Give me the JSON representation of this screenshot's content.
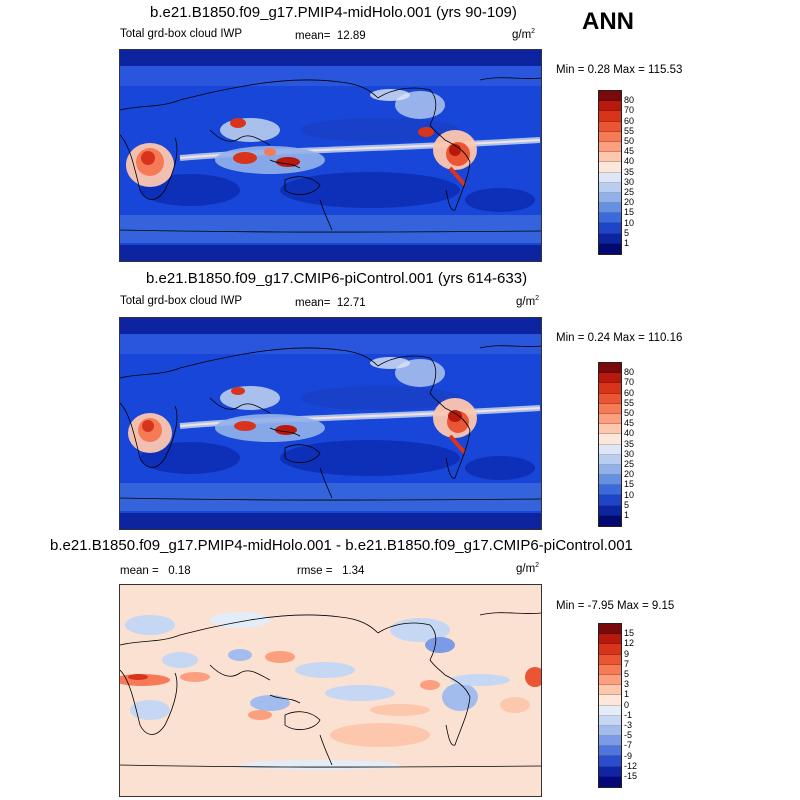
{
  "season": "ANN",
  "panels": [
    {
      "title": "b.e21.B1850.f09_g17.PMIP4-midHolo.001 (yrs 90-109)",
      "variable": "Total grd-box cloud IWP",
      "mean_label": "mean=",
      "mean_value": "12.89",
      "unit": "g/m",
      "unit_exp": "2",
      "minmax": "Min =  0.28 Max = 115.53",
      "colorbar": {
        "labels": [
          "80",
          "70",
          "60",
          "55",
          "50",
          "45",
          "40",
          "35",
          "30",
          "25",
          "20",
          "15",
          "10",
          "5",
          "1"
        ],
        "colors": [
          "#7a0a0a",
          "#b8190e",
          "#d8341c",
          "#ea5634",
          "#f57a55",
          "#fb9f7e",
          "#fdc7ae",
          "#fde6da",
          "#dde7f7",
          "#b9cdf0",
          "#92b1ea",
          "#6690e2",
          "#3c6adc",
          "#1e45c8",
          "#0d24a0",
          "#020a72"
        ]
      }
    },
    {
      "title": "b.e21.B1850.f09_g17.CMIP6-piControl.001 (yrs 614-633)",
      "variable": "Total grd-box cloud IWP",
      "mean_label": "mean=",
      "mean_value": "12.71",
      "unit": "g/m",
      "unit_exp": "2",
      "minmax": "Min =  0.24 Max = 110.16",
      "colorbar": {
        "labels": [
          "80",
          "70",
          "60",
          "55",
          "50",
          "45",
          "40",
          "35",
          "30",
          "25",
          "20",
          "15",
          "10",
          "5",
          "1"
        ],
        "colors": [
          "#7a0a0a",
          "#b8190e",
          "#d8341c",
          "#ea5634",
          "#f57a55",
          "#fb9f7e",
          "#fdc7ae",
          "#fde6da",
          "#dde7f7",
          "#b9cdf0",
          "#92b1ea",
          "#6690e2",
          "#3c6adc",
          "#1e45c8",
          "#0d24a0",
          "#020a72"
        ]
      }
    },
    {
      "title": "b.e21.B1850.f09_g17.PMIP4-midHolo.001 - b.e21.B1850.f09_g17.CMIP6-piControl.001",
      "mean_label": "mean =",
      "mean_value": "0.18",
      "rmse_label": "rmse =",
      "rmse_value": "1.34",
      "unit": "g/m",
      "unit_exp": "2",
      "minmax": "Min = -7.95 Max =  9.15",
      "colorbar": {
        "labels": [
          "15",
          "12",
          "9",
          "7",
          "5",
          "3",
          "1",
          "0",
          "-1",
          "-3",
          "-5",
          "-7",
          "-9",
          "-12",
          "-15"
        ],
        "colors": [
          "#7a0a0a",
          "#b8190e",
          "#d8341c",
          "#ea5634",
          "#f57a55",
          "#fb9f7e",
          "#fdc7ae",
          "#fde6da",
          "#e4ecf8",
          "#c6d7f3",
          "#a3bcee",
          "#7b9be6",
          "#4f76dc",
          "#2a4dcc",
          "#1124a6",
          "#03087a"
        ]
      }
    }
  ]
}
